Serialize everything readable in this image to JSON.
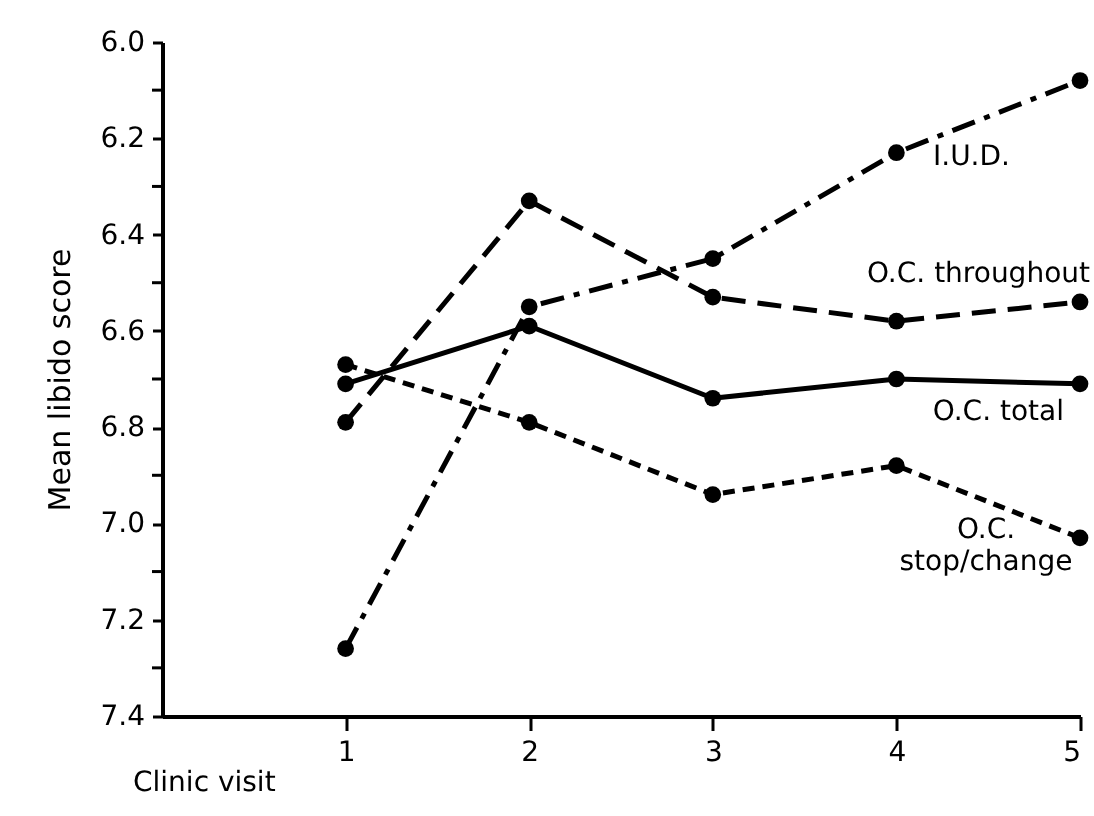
{
  "chart_data": {
    "type": "line",
    "xlabel": "Clinic visit",
    "ylabel": "Mean libido score",
    "x": [
      1,
      2,
      3,
      4,
      5
    ],
    "xlim": [
      0,
      5
    ],
    "xticks": [
      1,
      2,
      3,
      4,
      5
    ],
    "ylim": [
      7.4,
      6.0
    ],
    "yticks": [
      {
        "value": 6.0,
        "label": "6.0"
      },
      {
        "value": 6.1,
        "label": null
      },
      {
        "value": 6.2,
        "label": "6.2"
      },
      {
        "value": 6.3,
        "label": null
      },
      {
        "value": 6.4,
        "label": "6.4"
      },
      {
        "value": 6.5,
        "label": null
      },
      {
        "value": 6.6,
        "label": "6.6"
      },
      {
        "value": 6.7,
        "label": null
      },
      {
        "value": 6.8,
        "label": "6.8"
      },
      {
        "value": 6.9,
        "label": null
      },
      {
        "value": 7.0,
        "label": "7.0"
      },
      {
        "value": 7.1,
        "label": null
      },
      {
        "value": 7.2,
        "label": "7.2"
      },
      {
        "value": 7.3,
        "label": null
      },
      {
        "value": 7.4,
        "label": "7.4"
      }
    ],
    "grid": false,
    "legend": false,
    "marker": "circle",
    "series": [
      {
        "name": "I.U.D.",
        "color": "#000000",
        "line_style": "dashdot",
        "values": [
          7.26,
          6.55,
          6.45,
          6.23,
          6.08
        ]
      },
      {
        "name": "O.C. throughout",
        "color": "#000000",
        "line_style": "dashed",
        "values": [
          6.79,
          6.33,
          6.53,
          6.58,
          6.54
        ]
      },
      {
        "name": "O.C. total",
        "color": "#000000",
        "line_style": "solid",
        "values": [
          6.71,
          6.59,
          6.74,
          6.7,
          6.71
        ]
      },
      {
        "name": "O.C. stop/change",
        "color": "#000000",
        "line_style": "dotted",
        "values": [
          6.67,
          6.79,
          6.94,
          6.88,
          7.03
        ]
      }
    ]
  }
}
